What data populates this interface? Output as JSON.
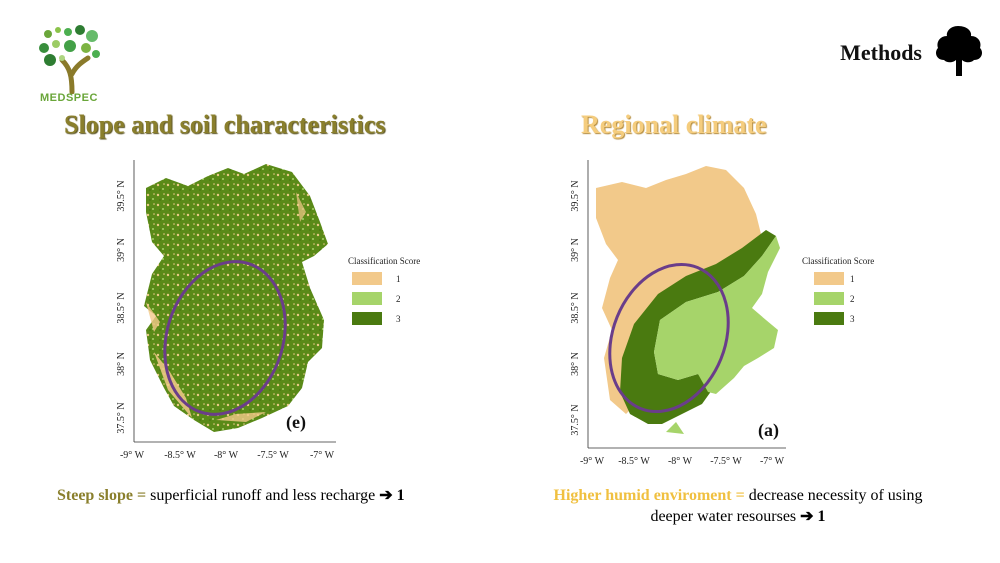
{
  "header": {
    "section": "Methods",
    "logo_text": "MEDSPEC"
  },
  "colors": {
    "score1": "#f2c98a",
    "score2": "#a6d46a",
    "score3": "#4a7a10",
    "ellipse": "#6a3d8a"
  },
  "left_panel": {
    "title": "Slope and soil characteristics",
    "panel_tag": "(e)",
    "legend": {
      "title": "Classification Score",
      "items": [
        "1",
        "2",
        "3"
      ]
    },
    "lat_labels": [
      "39.5° N",
      "39° N",
      "38.5° N",
      "38° N",
      "37.5° N"
    ],
    "lon_labels": [
      "-9° W",
      "-8.5° W",
      "-8° W",
      "-7.5° W",
      "-7° W"
    ],
    "caption": {
      "highlight": "Steep slope =",
      "text": " superficial runoff and less recharge ",
      "arrow": "➔",
      "value": "1"
    }
  },
  "right_panel": {
    "title": "Regional climate",
    "panel_tag": "(a)",
    "legend": {
      "title": "Classification Score",
      "items": [
        "1",
        "2",
        "3"
      ]
    },
    "lat_labels": [
      "39.5° N",
      "39° N",
      "38.5° N",
      "38° N",
      "37.5° N"
    ],
    "lon_labels": [
      "-9° W",
      "-8.5° W",
      "-8° W",
      "-7.5° W",
      "-7° W"
    ],
    "caption": {
      "highlight": "Higher humid enviroment =",
      "text": " decrease necessity of using deeper water resourses ",
      "arrow": "➔",
      "value": "1"
    }
  }
}
